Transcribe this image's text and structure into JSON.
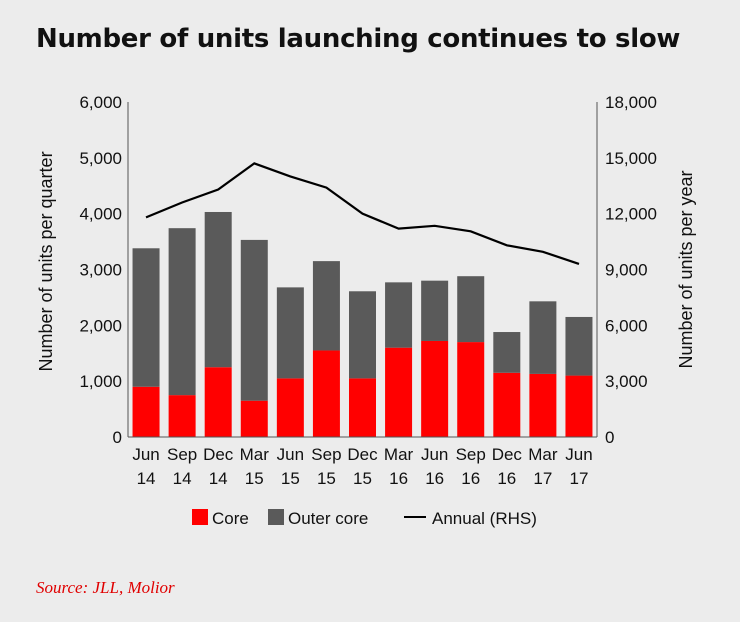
{
  "title": "Number of units launching continues to slow",
  "source": "Source: JLL, Molior",
  "colors": {
    "core": "#ff0000",
    "outer_core": "#5a5a5a",
    "annual": "#000000"
  },
  "chart_data": {
    "type": "bar",
    "stacked": true,
    "title": "Number of units launching continues to slow",
    "categories": [
      "Jun 14",
      "Sep 14",
      "Dec 14",
      "Mar 15",
      "Jun 15",
      "Sep 15",
      "Dec 15",
      "Mar 16",
      "Jun 16",
      "Sep 16",
      "Dec 16",
      "Mar 17",
      "Jun 17"
    ],
    "category_lines": [
      [
        "Jun",
        "14"
      ],
      [
        "Sep",
        "14"
      ],
      [
        "Dec",
        "14"
      ],
      [
        "Mar",
        "15"
      ],
      [
        "Jun",
        "15"
      ],
      [
        "Sep",
        "15"
      ],
      [
        "Dec",
        "15"
      ],
      [
        "Mar",
        "16"
      ],
      [
        "Jun",
        "16"
      ],
      [
        "Sep",
        "16"
      ],
      [
        "Dec",
        "16"
      ],
      [
        "Mar",
        "17"
      ],
      [
        "Jun",
        "17"
      ]
    ],
    "series": [
      {
        "name": "Core",
        "axis": "left",
        "kind": "bar",
        "values": [
          900,
          750,
          1250,
          650,
          1050,
          1550,
          1050,
          1600,
          1720,
          1700,
          1150,
          1130,
          1100
        ]
      },
      {
        "name": "Outer core",
        "axis": "left",
        "kind": "bar",
        "values": [
          2480,
          2990,
          2780,
          2880,
          1630,
          1600,
          1560,
          1170,
          1080,
          1180,
          730,
          1300,
          1050
        ]
      },
      {
        "name": "Annual (RHS)",
        "axis": "right",
        "kind": "line",
        "values": [
          11800,
          12600,
          13300,
          14700,
          14000,
          13400,
          12000,
          11200,
          11350,
          11050,
          10300,
          9950,
          9300
        ]
      }
    ],
    "ylabel": "Number of units per quarter",
    "y2label": "Number of units per year",
    "ylim": [
      0,
      6000
    ],
    "y2lim": [
      0,
      18000
    ],
    "yticks": [
      "0",
      "1,000",
      "2,000",
      "3,000",
      "4,000",
      "5,000",
      "6,000"
    ],
    "y2ticks": [
      "0",
      "3,000",
      "6,000",
      "9,000",
      "12,000",
      "15,000",
      "18,000"
    ],
    "grid": false,
    "legend_position": "bottom"
  }
}
